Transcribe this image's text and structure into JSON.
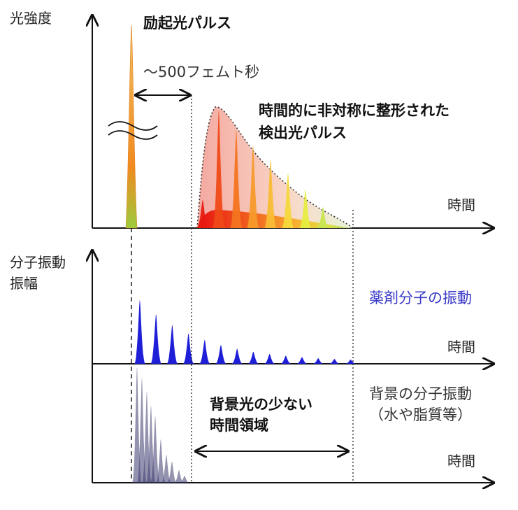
{
  "top_panel": {
    "y_axis_label": "光強度",
    "x_axis_label": "時間",
    "excitation_label": "励起光パルス",
    "delay_label": "～500フェムト秒",
    "detected_label_line1": "時間的に非対称に整形された",
    "detected_label_line2": "検出光パルス"
  },
  "middle_panel": {
    "y_axis_label_line1": "分子振動",
    "y_axis_label_line2": "振幅",
    "x_axis_label": "時間",
    "drug_label": "薬剤分子の振動"
  },
  "bottom_panel": {
    "x_axis_label": "時間",
    "window_label_line1": "背景光の少ない",
    "window_label_line2": "時間領域",
    "background_label_line1": "背景の分子振動",
    "background_label_line2": "（水や脂質等）"
  },
  "colors": {
    "axis": "#111111",
    "drug_vibration": "#1f1fd8",
    "background_vibration": "#3a3a6e",
    "drug_label": "#3a3ac8"
  }
}
